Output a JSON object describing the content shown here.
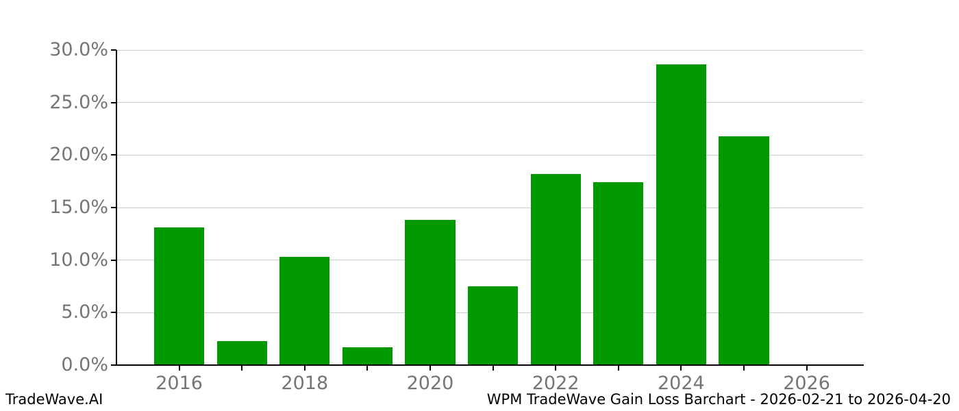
{
  "footer": {
    "brand": "TradeWave.AI"
  },
  "chart_data": {
    "type": "bar",
    "title": "WPM TradeWave Gain Loss Barchart - 2026-02-21 to 2026-04-20",
    "xlabel": "",
    "ylabel": "",
    "categories": [
      "2016",
      "2017",
      "2018",
      "2019",
      "2020",
      "2021",
      "2022",
      "2023",
      "2024",
      "2025"
    ],
    "values": [
      13.1,
      2.3,
      10.3,
      1.7,
      13.8,
      7.5,
      18.2,
      17.4,
      28.6,
      21.8
    ],
    "value_unit": "percent",
    "ylim": [
      0,
      30
    ],
    "yticks": [
      0,
      5,
      10,
      15,
      20,
      25,
      30
    ],
    "ytick_labels": [
      "0.0%",
      "5.0%",
      "10.0%",
      "15.0%",
      "20.0%",
      "25.0%",
      "30.0%"
    ],
    "xtick_years": [
      2016,
      2017,
      2018,
      2019,
      2020,
      2021,
      2022,
      2023,
      2024,
      2025,
      2026
    ],
    "xtick_labels": [
      "2016",
      "",
      "2018",
      "",
      "2020",
      "",
      "2022",
      "",
      "2024",
      "",
      "2026"
    ],
    "xlim": [
      2015.0,
      2026.9
    ],
    "bar_width_fraction": 0.8,
    "grid": true,
    "legend": false,
    "colors": {
      "bar": "#009a00",
      "gridline": "#cccccc",
      "tick_label": "#757575",
      "axis": "#000000"
    }
  }
}
